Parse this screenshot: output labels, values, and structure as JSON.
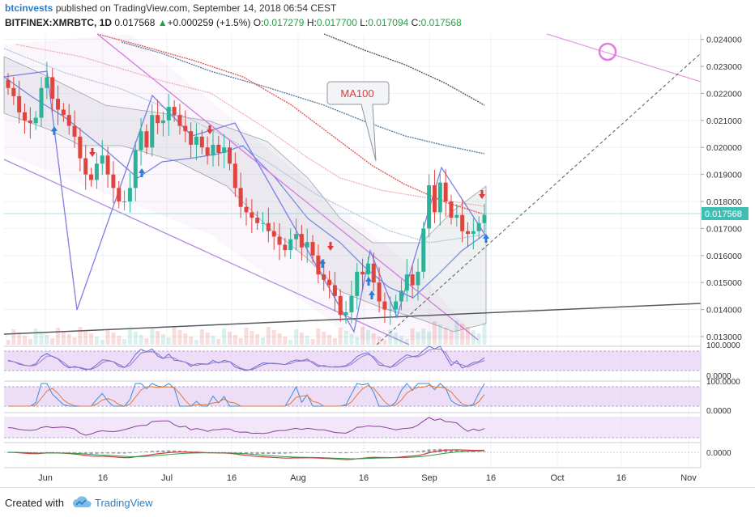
{
  "header": {
    "author": "btcinvests",
    "published": "published on TradingView.com, September 14, 2018 06:54 CEST",
    "symbol": "BITFINEX:XMRBTC, 1D",
    "last": "0.017568",
    "change": "+0.000259 (+1.5%)",
    "open_label": "O:",
    "open": "0.017279",
    "high_label": "H:",
    "high": "0.017700",
    "low_label": "L:",
    "low": "0.017094",
    "close_label": "C:",
    "close": "0.017568"
  },
  "colors": {
    "candle_up": "#2bb39a",
    "candle_down": "#e0443f",
    "accent": "#2a7ec8",
    "pattern": "#7d7de8",
    "channel": "#d57ce0",
    "price_tag": "#3fbfb2"
  },
  "footer": {
    "created_with": "Created with",
    "brand": "TradingView"
  },
  "chart_data": {
    "type": "candlestick",
    "title": "BITFINEX:XMRBTC, 1D",
    "price_axis_ticks": [
      "0.024000",
      "0.023000",
      "0.022000",
      "0.021000",
      "0.020000",
      "0.019000",
      "0.018000",
      "0.017000",
      "0.016000",
      "0.015000",
      "0.014000",
      "0.013000"
    ],
    "ylim": [
      0.0127,
      0.0242
    ],
    "last_price_tag": "0.017568",
    "time_axis_labels": [
      "Jun",
      "16",
      "Jul",
      "16",
      "Aug",
      "16",
      "Sep",
      "16",
      "Oct",
      "16",
      "Nov"
    ],
    "annotation": "MA100",
    "close_values": [
      0.0222,
      0.0219,
      0.0213,
      0.021,
      0.0209,
      0.0211,
      0.0222,
      0.0226,
      0.0218,
      0.0214,
      0.0212,
      0.0208,
      0.0204,
      0.0196,
      0.019,
      0.0188,
      0.0194,
      0.0197,
      0.019,
      0.0185,
      0.018,
      0.018,
      0.0185,
      0.0199,
      0.0206,
      0.02,
      0.0212,
      0.0209,
      0.021,
      0.0215,
      0.0212,
      0.0208,
      0.0206,
      0.0201,
      0.0204,
      0.02,
      0.0197,
      0.0201,
      0.0198,
      0.02,
      0.0194,
      0.0185,
      0.0178,
      0.0176,
      0.0174,
      0.0172,
      0.0172,
      0.0169,
      0.0167,
      0.0164,
      0.0162,
      0.0166,
      0.0168,
      0.0163,
      0.0165,
      0.016,
      0.0153,
      0.0151,
      0.0149,
      0.0145,
      0.0138,
      0.0139,
      0.0145,
      0.0154,
      0.0153,
      0.0157,
      0.015,
      0.0143,
      0.014,
      0.014,
      0.0143,
      0.0147,
      0.0153,
      0.0149,
      0.0154,
      0.017,
      0.0186,
      0.0176,
      0.0187,
      0.018,
      0.0174,
      0.0175,
      0.0169,
      0.0168,
      0.0169,
      0.0172,
      0.0175
    ],
    "indicator_panels": [
      {
        "name": "oscillator-1",
        "labels": [
          "100.0000",
          "0.0000"
        ]
      },
      {
        "name": "stochastic",
        "labels": [
          "100.0000",
          "0.0000"
        ]
      },
      {
        "name": "oscillator-3",
        "labels": []
      },
      {
        "name": "macd",
        "labels": [
          "0.0000"
        ]
      }
    ]
  }
}
